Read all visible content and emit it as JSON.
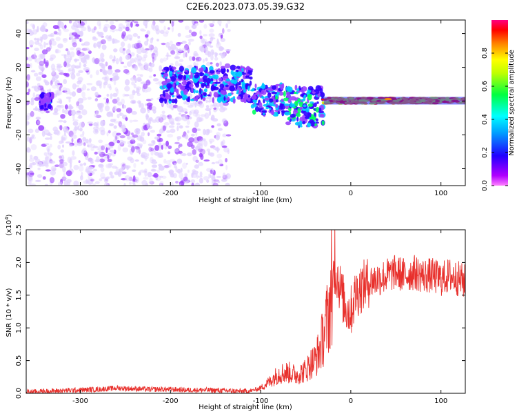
{
  "title": "C2E6.2023.073.05.39.G32",
  "chart_data": [
    {
      "type": "heatmap",
      "xlabel": "Height of straight line (km)",
      "ylabel": "Frequency (Hz)",
      "xlim": [
        -360,
        127
      ],
      "ylim": [
        -50,
        48
      ],
      "xticks": [
        -300,
        -200,
        -100,
        0,
        100
      ],
      "yticks": [
        -40,
        -20,
        0,
        20,
        40
      ],
      "colorbar": {
        "label": "Normalized spectral amplitude",
        "range": [
          0.0,
          1.0
        ],
        "ticks": [
          0.0,
          0.2,
          0.4,
          0.6,
          0.8
        ],
        "colormap": [
          "#e8dcff",
          "#7b00ff",
          "#0000ff",
          "#00ffff",
          "#00ff00",
          "#ffff00",
          "#ff8000",
          "#ff0000",
          "#ff0080"
        ]
      },
      "features": [
        {
          "x_range": [
            -360,
            -135
          ],
          "freq_range": [
            -50,
            48
          ],
          "amplitude": 0.15,
          "note": "diffuse noise"
        },
        {
          "x_range": [
            -345,
            -330
          ],
          "freq_range": [
            -5,
            5
          ],
          "amplitude": 0.35
        },
        {
          "x_range": [
            -210,
            -110
          ],
          "freq_range": [
            0,
            20
          ],
          "amplitude": 0.4
        },
        {
          "x_range": [
            -110,
            -75
          ],
          "freq_range": [
            -8,
            10
          ],
          "amplitude": 0.45
        },
        {
          "x_range": [
            -75,
            -30
          ],
          "freq_range": [
            -15,
            8
          ],
          "amplitude": 0.5
        },
        {
          "x_range": [
            -30,
            127
          ],
          "freq_range": [
            -1.5,
            2
          ],
          "amplitude": 0.9,
          "note": "narrow carrier near 0 Hz"
        }
      ],
      "grid": false
    },
    {
      "type": "line",
      "xlabel": "Height of straight line (km)",
      "ylabel": "SNR (10 * v/v)",
      "y_scale_label": "(x10",
      "y_scale_exponent": "4",
      "xlim": [
        -360,
        127
      ],
      "ylim": [
        0.0,
        2.5
      ],
      "xticks": [
        -300,
        -200,
        -100,
        0,
        100
      ],
      "yticks": [
        0.0,
        0.5,
        1.0,
        1.5,
        2.0,
        2.5
      ],
      "color": "#e8302c",
      "grid": false,
      "series": [
        {
          "x": [
            -360,
            -340,
            -320,
            -300,
            -280,
            -260,
            -240,
            -220,
            -200,
            -180,
            -160,
            -140,
            -120,
            -110,
            -100,
            -90,
            -80,
            -70,
            -60,
            -50,
            -45,
            -40,
            -35,
            -30,
            -25,
            -22,
            -20,
            -18,
            -15,
            -10,
            -5,
            0,
            5,
            10,
            20,
            30,
            40,
            50,
            60,
            70,
            80,
            90,
            100,
            110,
            120,
            127
          ],
          "y": [
            0.02,
            0.03,
            0.04,
            0.05,
            0.06,
            0.08,
            0.07,
            0.06,
            0.06,
            0.05,
            0.05,
            0.04,
            0.03,
            0.04,
            0.08,
            0.18,
            0.3,
            0.32,
            0.28,
            0.35,
            0.45,
            0.5,
            0.65,
            0.9,
            1.2,
            1.5,
            1.7,
            1.9,
            1.8,
            1.5,
            1.3,
            1.25,
            1.5,
            1.6,
            1.7,
            1.75,
            1.8,
            1.85,
            1.8,
            1.85,
            1.8,
            1.8,
            1.75,
            1.8,
            1.75,
            1.7
          ]
        }
      ]
    }
  ]
}
